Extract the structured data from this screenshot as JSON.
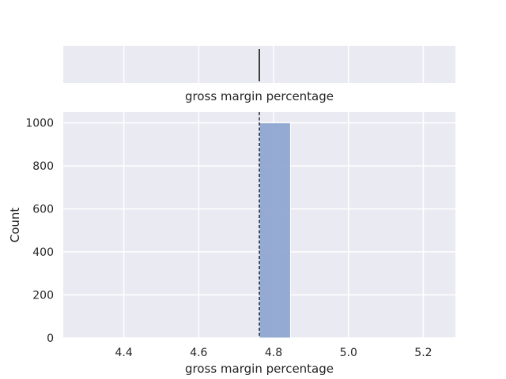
{
  "chart_data": [
    {
      "type": "box",
      "xlabel": "gross margin percentage",
      "xlim": [
        4.2381,
        5.2857
      ],
      "median": 4.7619,
      "q1": 4.7619,
      "q3": 4.7619,
      "whisker_low": 4.7619,
      "whisker_high": 4.7619,
      "grid": true,
      "colors": {
        "face": "#eaeaf2",
        "grid": "#ffffff",
        "line": "#3f3f3f"
      }
    },
    {
      "type": "bar",
      "subtype": "histogram",
      "xlabel": "gross margin percentage",
      "ylabel": "Count",
      "xlim": [
        4.2381,
        5.2857
      ],
      "ylim": [
        0,
        1050
      ],
      "xticks": [
        "4.4",
        "4.6",
        "4.8",
        "5.0",
        "5.2"
      ],
      "yticks": [
        "0",
        "200",
        "400",
        "600",
        "800",
        "1000"
      ],
      "bins": [
        {
          "x0": 4.7619,
          "x1": 4.8452,
          "count": 1000
        }
      ],
      "mean_line": 4.7619,
      "grid": true,
      "colors": {
        "face": "#eaeaf2",
        "grid": "#ffffff",
        "bar": "#8fa6d1",
        "bar_edge": "#ffffff",
        "mean_line": "#000000"
      }
    }
  ]
}
